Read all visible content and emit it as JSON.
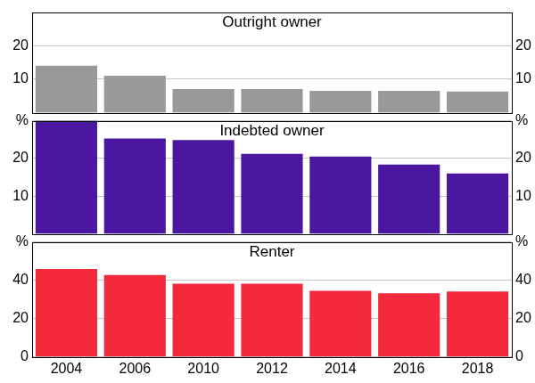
{
  "chart_data": [
    {
      "type": "bar",
      "title": "Outright owner",
      "categories": [
        "2004",
        "2006",
        "2010",
        "2012",
        "2014",
        "2016",
        "2018"
      ],
      "values": [
        14,
        11,
        7,
        7,
        6.5,
        6.5,
        6.3
      ],
      "color": "#999999",
      "ylim": [
        0,
        30
      ],
      "yticks": [
        10,
        20
      ],
      "grid": true,
      "tick_labels": "y"
    },
    {
      "type": "bar",
      "title": "Indebted owner",
      "categories": [
        "2004",
        "2006",
        "2010",
        "2012",
        "2014",
        "2016",
        "2018"
      ],
      "values": [
        30,
        25.3,
        24.9,
        21.2,
        20.5,
        18.4,
        16
      ],
      "color": "#4b16a0",
      "ylim": [
        0,
        30
      ],
      "yticks": [
        10,
        20,
        {
          "value": 30,
          "label": "%"
        }
      ],
      "grid": true,
      "tick_labels": "y"
    },
    {
      "type": "bar",
      "title": "Renter",
      "categories": [
        "2004",
        "2006",
        "2010",
        "2012",
        "2014",
        "2016",
        "2018"
      ],
      "values": [
        45.9,
        42.7,
        38.2,
        38.2,
        34.5,
        33.2,
        34.1
      ],
      "color": "#f22a3c",
      "ylim": [
        0,
        60
      ],
      "yticks": [
        0,
        20,
        40,
        {
          "value": 60,
          "label": "%"
        }
      ],
      "grid": true
    }
  ]
}
